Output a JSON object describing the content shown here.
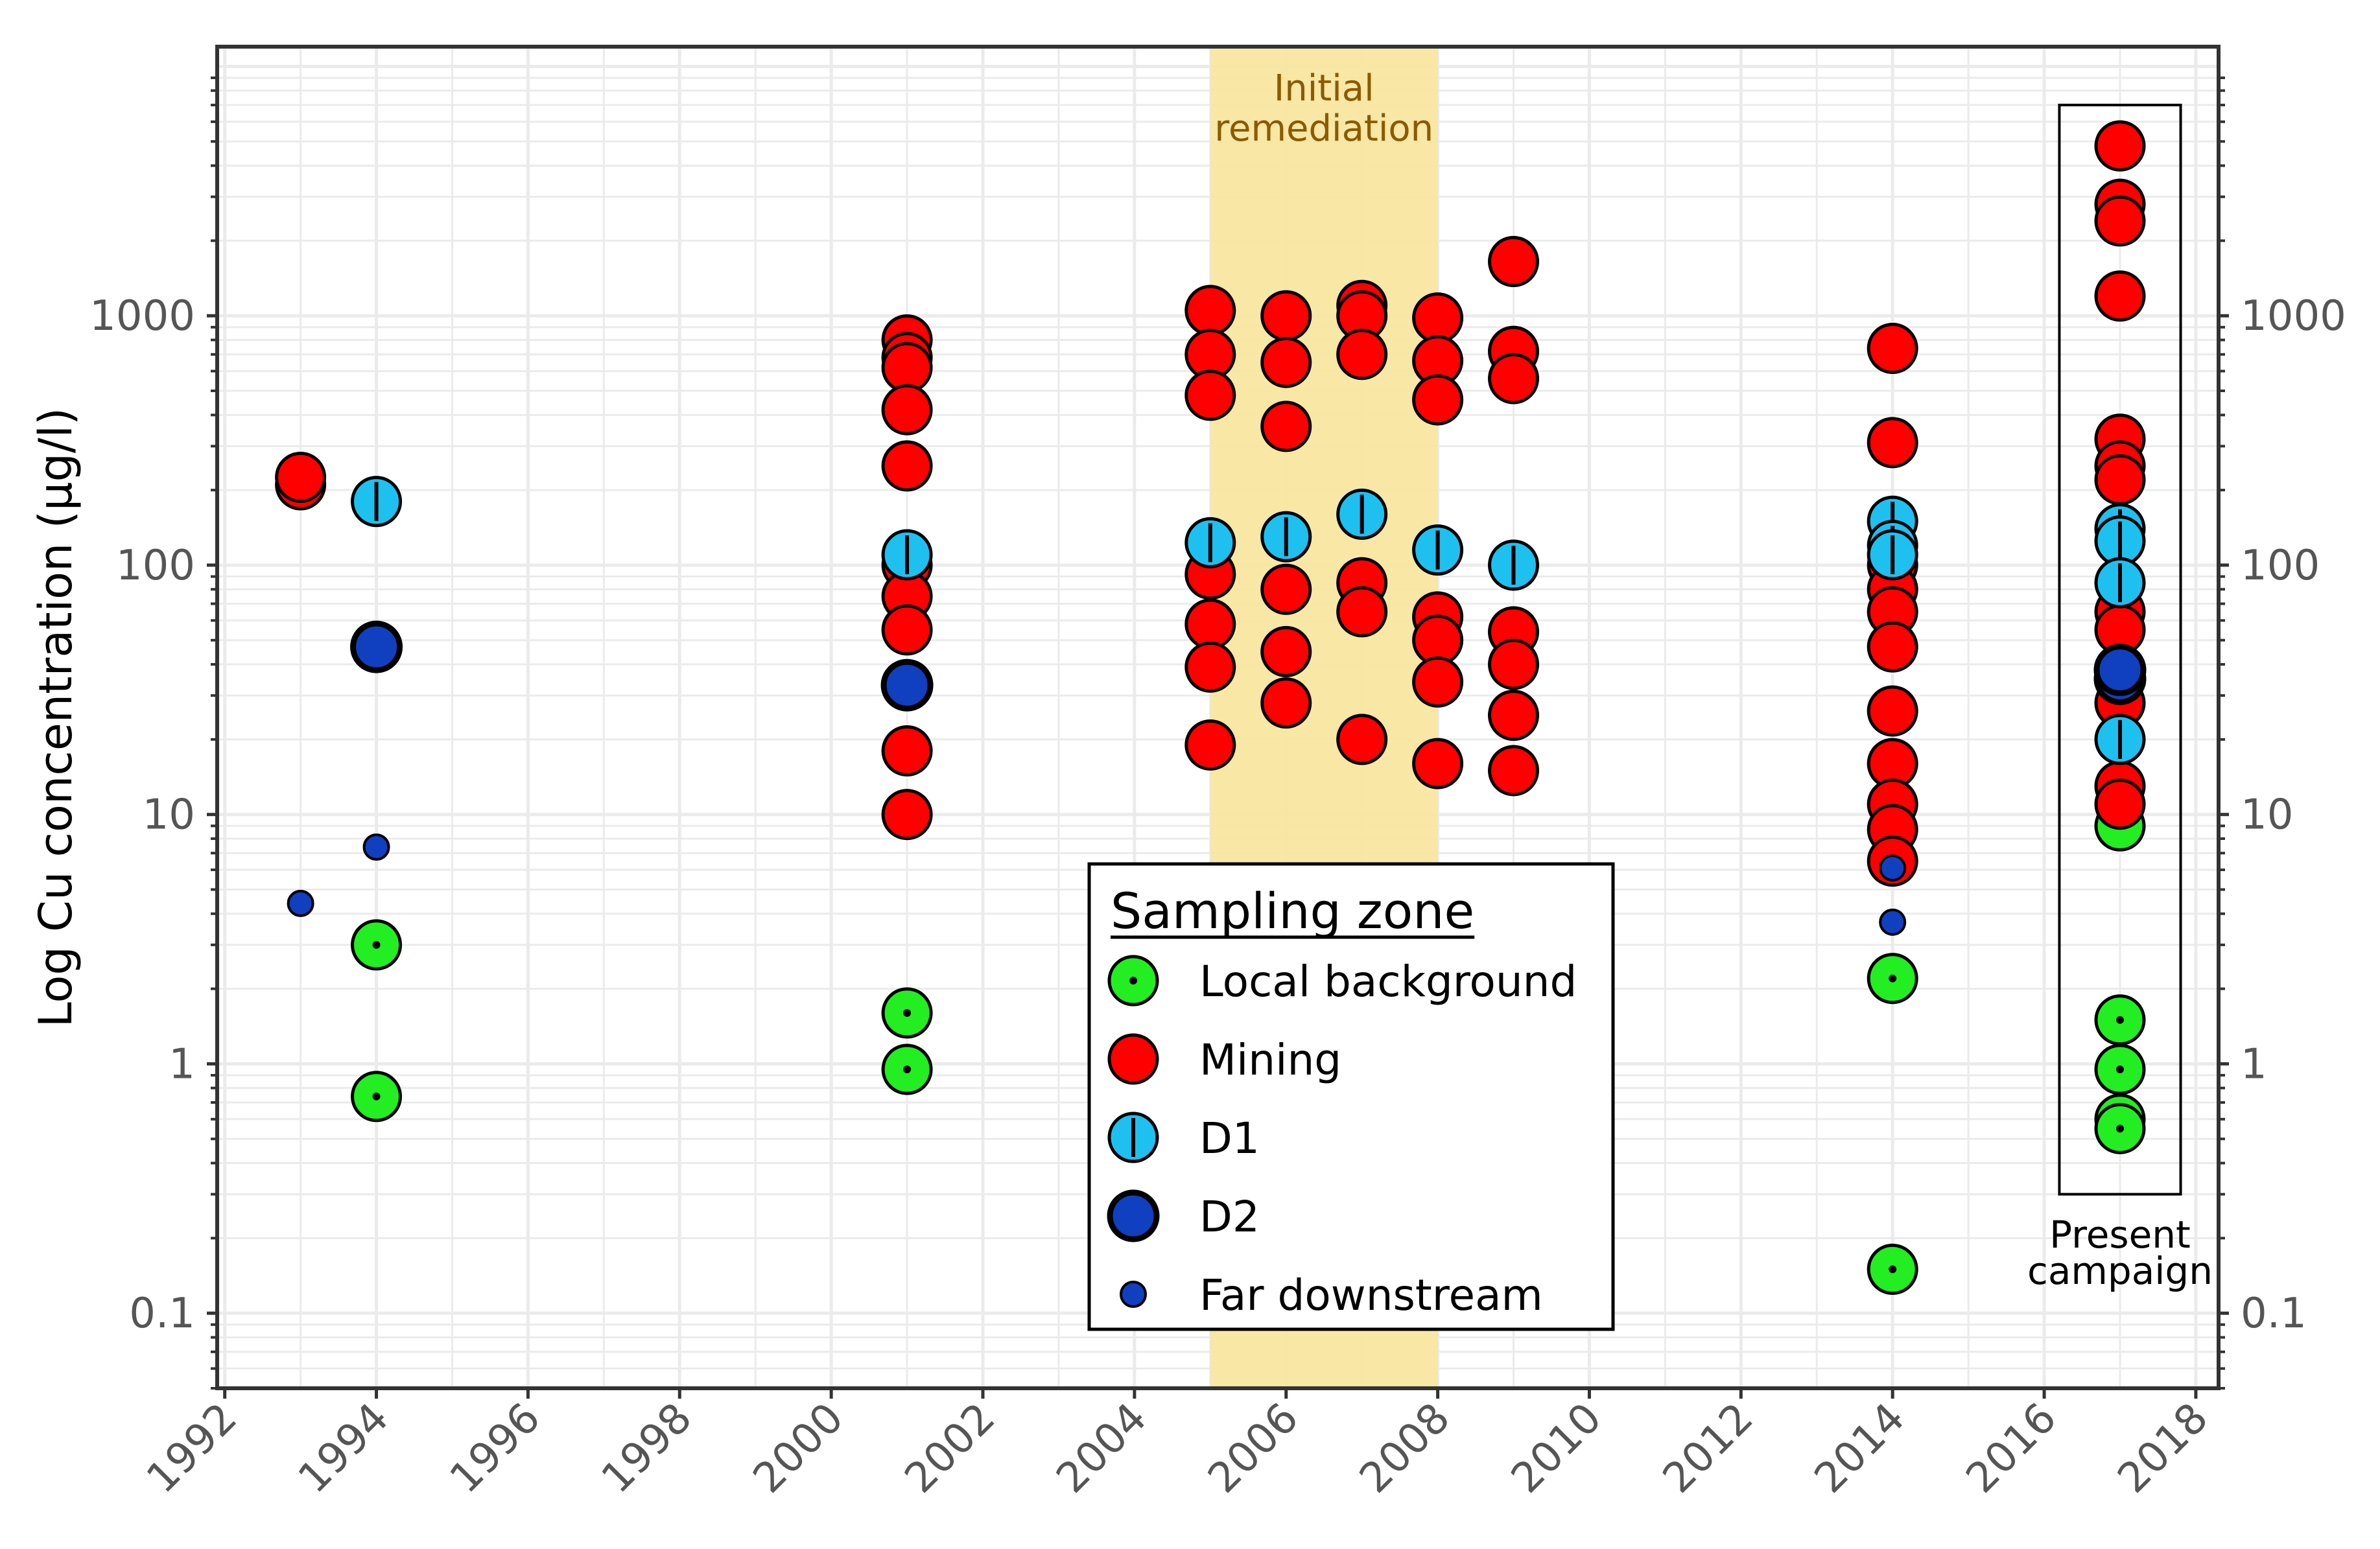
{
  "chart_data": {
    "type": "scatter",
    "title": "",
    "xlabel": "",
    "ylabel": "Log Cu concentration (µg/l)",
    "xlim": [
      1991.9,
      2018.3
    ],
    "ylim": [
      0.05,
      12000
    ],
    "yscale": "log",
    "x_ticks": [
      1992,
      1994,
      1996,
      1998,
      2000,
      2002,
      2004,
      2006,
      2008,
      2010,
      2012,
      2014,
      2016,
      2018
    ],
    "y_ticks": [
      {
        "value": 0.1,
        "label": "0.1"
      },
      {
        "value": 1,
        "label": "1"
      },
      {
        "value": 10,
        "label": "10"
      },
      {
        "value": 100,
        "label": "100"
      },
      {
        "value": 1000,
        "label": "1000"
      }
    ],
    "grid": true,
    "secondary_y_axis": true,
    "shaded_periods": [
      {
        "from": 2005,
        "to": 2008,
        "label_lines": [
          "Initial",
          "remediation"
        ],
        "color": "#F8E6A0"
      }
    ],
    "boxed_periods": [
      {
        "from": 2016.2,
        "to": 2017.8,
        "y_from": 0.3,
        "y_to": 7000,
        "label_lines": [
          "Present",
          "campaign"
        ]
      }
    ],
    "legend": {
      "title": "Sampling zone",
      "position": "bottom-center"
    },
    "series": [
      {
        "name": "Local background",
        "color": "#22EE22",
        "marker": "dot",
        "points": [
          [
            1994,
            3.0
          ],
          [
            1994,
            0.74
          ],
          [
            2001,
            1.6
          ],
          [
            2001,
            0.95
          ],
          [
            2014,
            2.2
          ],
          [
            2014,
            0.15
          ],
          [
            2017,
            9.0
          ],
          [
            2017,
            1.5
          ],
          [
            2017,
            0.95
          ],
          [
            2017,
            0.6
          ],
          [
            2017,
            0.55
          ]
        ]
      },
      {
        "name": "Mining",
        "color": "#FF0000",
        "marker": "plain",
        "points": [
          [
            1993,
            210
          ],
          [
            1993,
            225
          ],
          [
            2001,
            800
          ],
          [
            2001,
            680
          ],
          [
            2001,
            620
          ],
          [
            2001,
            420
          ],
          [
            2001,
            250
          ],
          [
            2001,
            100
          ],
          [
            2001,
            75
          ],
          [
            2001,
            55
          ],
          [
            2001,
            33
          ],
          [
            2001,
            18
          ],
          [
            2001,
            10
          ],
          [
            2005,
            1050
          ],
          [
            2005,
            700
          ],
          [
            2005,
            480
          ],
          [
            2005,
            92
          ],
          [
            2005,
            58
          ],
          [
            2005,
            39
          ],
          [
            2005,
            19
          ],
          [
            2006,
            1000
          ],
          [
            2006,
            650
          ],
          [
            2006,
            360
          ],
          [
            2006,
            80
          ],
          [
            2006,
            45
          ],
          [
            2006,
            28
          ],
          [
            2007,
            1100
          ],
          [
            2007,
            1000
          ],
          [
            2007,
            700
          ],
          [
            2007,
            85
          ],
          [
            2007,
            65
          ],
          [
            2007,
            20
          ],
          [
            2008,
            980
          ],
          [
            2008,
            660
          ],
          [
            2008,
            460
          ],
          [
            2008,
            62
          ],
          [
            2008,
            50
          ],
          [
            2008,
            34
          ],
          [
            2008,
            16
          ],
          [
            2009,
            1650
          ],
          [
            2009,
            720
          ],
          [
            2009,
            560
          ],
          [
            2009,
            54
          ],
          [
            2009,
            40
          ],
          [
            2009,
            25
          ],
          [
            2009,
            15
          ],
          [
            2014,
            740
          ],
          [
            2014,
            310
          ],
          [
            2014,
            100
          ],
          [
            2014,
            80
          ],
          [
            2014,
            65
          ],
          [
            2014,
            47
          ],
          [
            2014,
            26
          ],
          [
            2014,
            16
          ],
          [
            2014,
            11
          ],
          [
            2014,
            8.7
          ],
          [
            2014,
            6.5
          ],
          [
            2017,
            4800
          ],
          [
            2017,
            2800
          ],
          [
            2017,
            2400
          ],
          [
            2017,
            1200
          ],
          [
            2017,
            320
          ],
          [
            2017,
            250
          ],
          [
            2017,
            220
          ],
          [
            2017,
            65
          ],
          [
            2017,
            55
          ],
          [
            2017,
            28
          ],
          [
            2017,
            13
          ],
          [
            2017,
            11
          ]
        ]
      },
      {
        "name": "D1",
        "color": "#1EC0F0",
        "marker": "vline",
        "points": [
          [
            1994,
            180
          ],
          [
            2001,
            110
          ],
          [
            2005,
            123
          ],
          [
            2006,
            130
          ],
          [
            2007,
            160
          ],
          [
            2008,
            115
          ],
          [
            2009,
            100
          ],
          [
            2014,
            150
          ],
          [
            2014,
            120
          ],
          [
            2014,
            110
          ],
          [
            2017,
            140
          ],
          [
            2017,
            125
          ],
          [
            2017,
            85
          ],
          [
            2017,
            20
          ]
        ]
      },
      {
        "name": "D2",
        "color": "#1040C0",
        "marker": "thick",
        "points": [
          [
            1994,
            47
          ],
          [
            2001,
            33
          ],
          [
            2017,
            35
          ],
          [
            2017,
            38
          ]
        ]
      },
      {
        "name": "Far downstream",
        "color": "#1040C0",
        "marker": "small",
        "points": [
          [
            1993,
            4.4
          ],
          [
            1994,
            7.4
          ],
          [
            2014,
            6.1
          ],
          [
            2014,
            3.7
          ]
        ]
      }
    ]
  }
}
